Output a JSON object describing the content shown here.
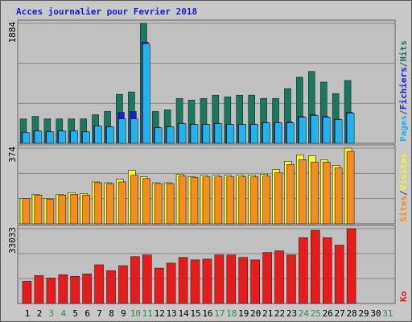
{
  "chart_data": [
    {
      "type": "bar",
      "title": "Acces journalier pour Fevrier 2018",
      "categories": [
        "1",
        "2",
        "3",
        "4",
        "5",
        "6",
        "7",
        "8",
        "9",
        "10",
        "11",
        "12",
        "13",
        "14",
        "15",
        "16",
        "17",
        "18",
        "19",
        "20",
        "21",
        "22",
        "23",
        "24",
        "25",
        "26",
        "27",
        "28",
        "29",
        "30",
        "31"
      ],
      "category_colors": [
        "#000000",
        "#000000",
        "#2e8b57",
        "#2e8b57",
        "#000000",
        "#000000",
        "#000000",
        "#000000",
        "#000000",
        "#2e8b57",
        "#2e8b57",
        "#000000",
        "#000000",
        "#000000",
        "#000000",
        "#000000",
        "#2e8b57",
        "#2e8b57",
        "#000000",
        "#000000",
        "#000000",
        "#000000",
        "#000000",
        "#2e8b57",
        "#2e8b57",
        "#000000",
        "#000000",
        "#000000",
        "#000000",
        "#000000",
        "#2e8b57"
      ],
      "ylim": [
        0,
        1884
      ],
      "yticks": [
        1884
      ],
      "ygrid": [
        628,
        1256
      ],
      "legend_separator": "/",
      "series": [
        {
          "name": "Pages",
          "color": "#1fb4f0",
          "values": [
            167,
            192,
            179,
            192,
            192,
            179,
            269,
            256,
            384,
            384,
            1564,
            243,
            256,
            308,
            295,
            295,
            308,
            295,
            295,
            295,
            320,
            320,
            320,
            410,
            436,
            410,
            372,
            474,
            null,
            null,
            null
          ]
        },
        {
          "name": "Fichiers",
          "color": "#1c1cd8",
          "values": [
            170,
            197,
            183,
            197,
            197,
            183,
            275,
            262,
            487,
            500,
            1590,
            250,
            262,
            314,
            300,
            300,
            314,
            300,
            300,
            300,
            326,
            326,
            333,
            420,
            446,
            420,
            380,
            487,
            null,
            null,
            null
          ]
        },
        {
          "name": "Hits",
          "color": "#177a5e",
          "values": [
            384,
            423,
            384,
            384,
            384,
            384,
            449,
            500,
            769,
            807,
            1884,
            500,
            525,
            705,
            679,
            705,
            756,
            730,
            756,
            756,
            705,
            705,
            859,
            1038,
            1128,
            961,
            782,
            987,
            null,
            null,
            null
          ]
        }
      ]
    },
    {
      "type": "bar",
      "ylim": [
        0,
        374
      ],
      "yticks": [
        374
      ],
      "ygrid": [
        125,
        249
      ],
      "legend_separator": "/",
      "series": [
        {
          "name": "Sites",
          "color": "#f68c1c",
          "values": [
            126,
            142,
            122,
            142,
            146,
            142,
            203,
            199,
            207,
            240,
            224,
            199,
            199,
            236,
            228,
            232,
            232,
            232,
            232,
            232,
            236,
            252,
            293,
            317,
            305,
            305,
            276,
            358,
            null,
            null,
            null
          ]
        },
        {
          "name": "Visites",
          "color": "#f6f62a",
          "values": [
            126,
            146,
            126,
            146,
            154,
            150,
            207,
            203,
            220,
            264,
            232,
            203,
            203,
            244,
            232,
            240,
            240,
            240,
            240,
            240,
            244,
            268,
            309,
            341,
            337,
            317,
            289,
            374,
            null,
            null,
            null
          ]
        }
      ]
    },
    {
      "type": "bar",
      "ylim": [
        0,
        33033
      ],
      "yticks": [
        33033
      ],
      "ygrid": [
        11011,
        22022
      ],
      "series": [
        {
          "name": "Ko",
          "color": "#e81a1a",
          "values": [
            9801,
            12342,
            11253,
            12705,
            11979,
            13068,
            17061,
            14520,
            16698,
            20691,
            21417,
            15609,
            17787,
            20328,
            19239,
            19602,
            21417,
            21417,
            20328,
            19239,
            22506,
            23232,
            21417,
            29040,
            32307,
            29040,
            25773,
            33033,
            null,
            null,
            null
          ]
        }
      ]
    }
  ]
}
